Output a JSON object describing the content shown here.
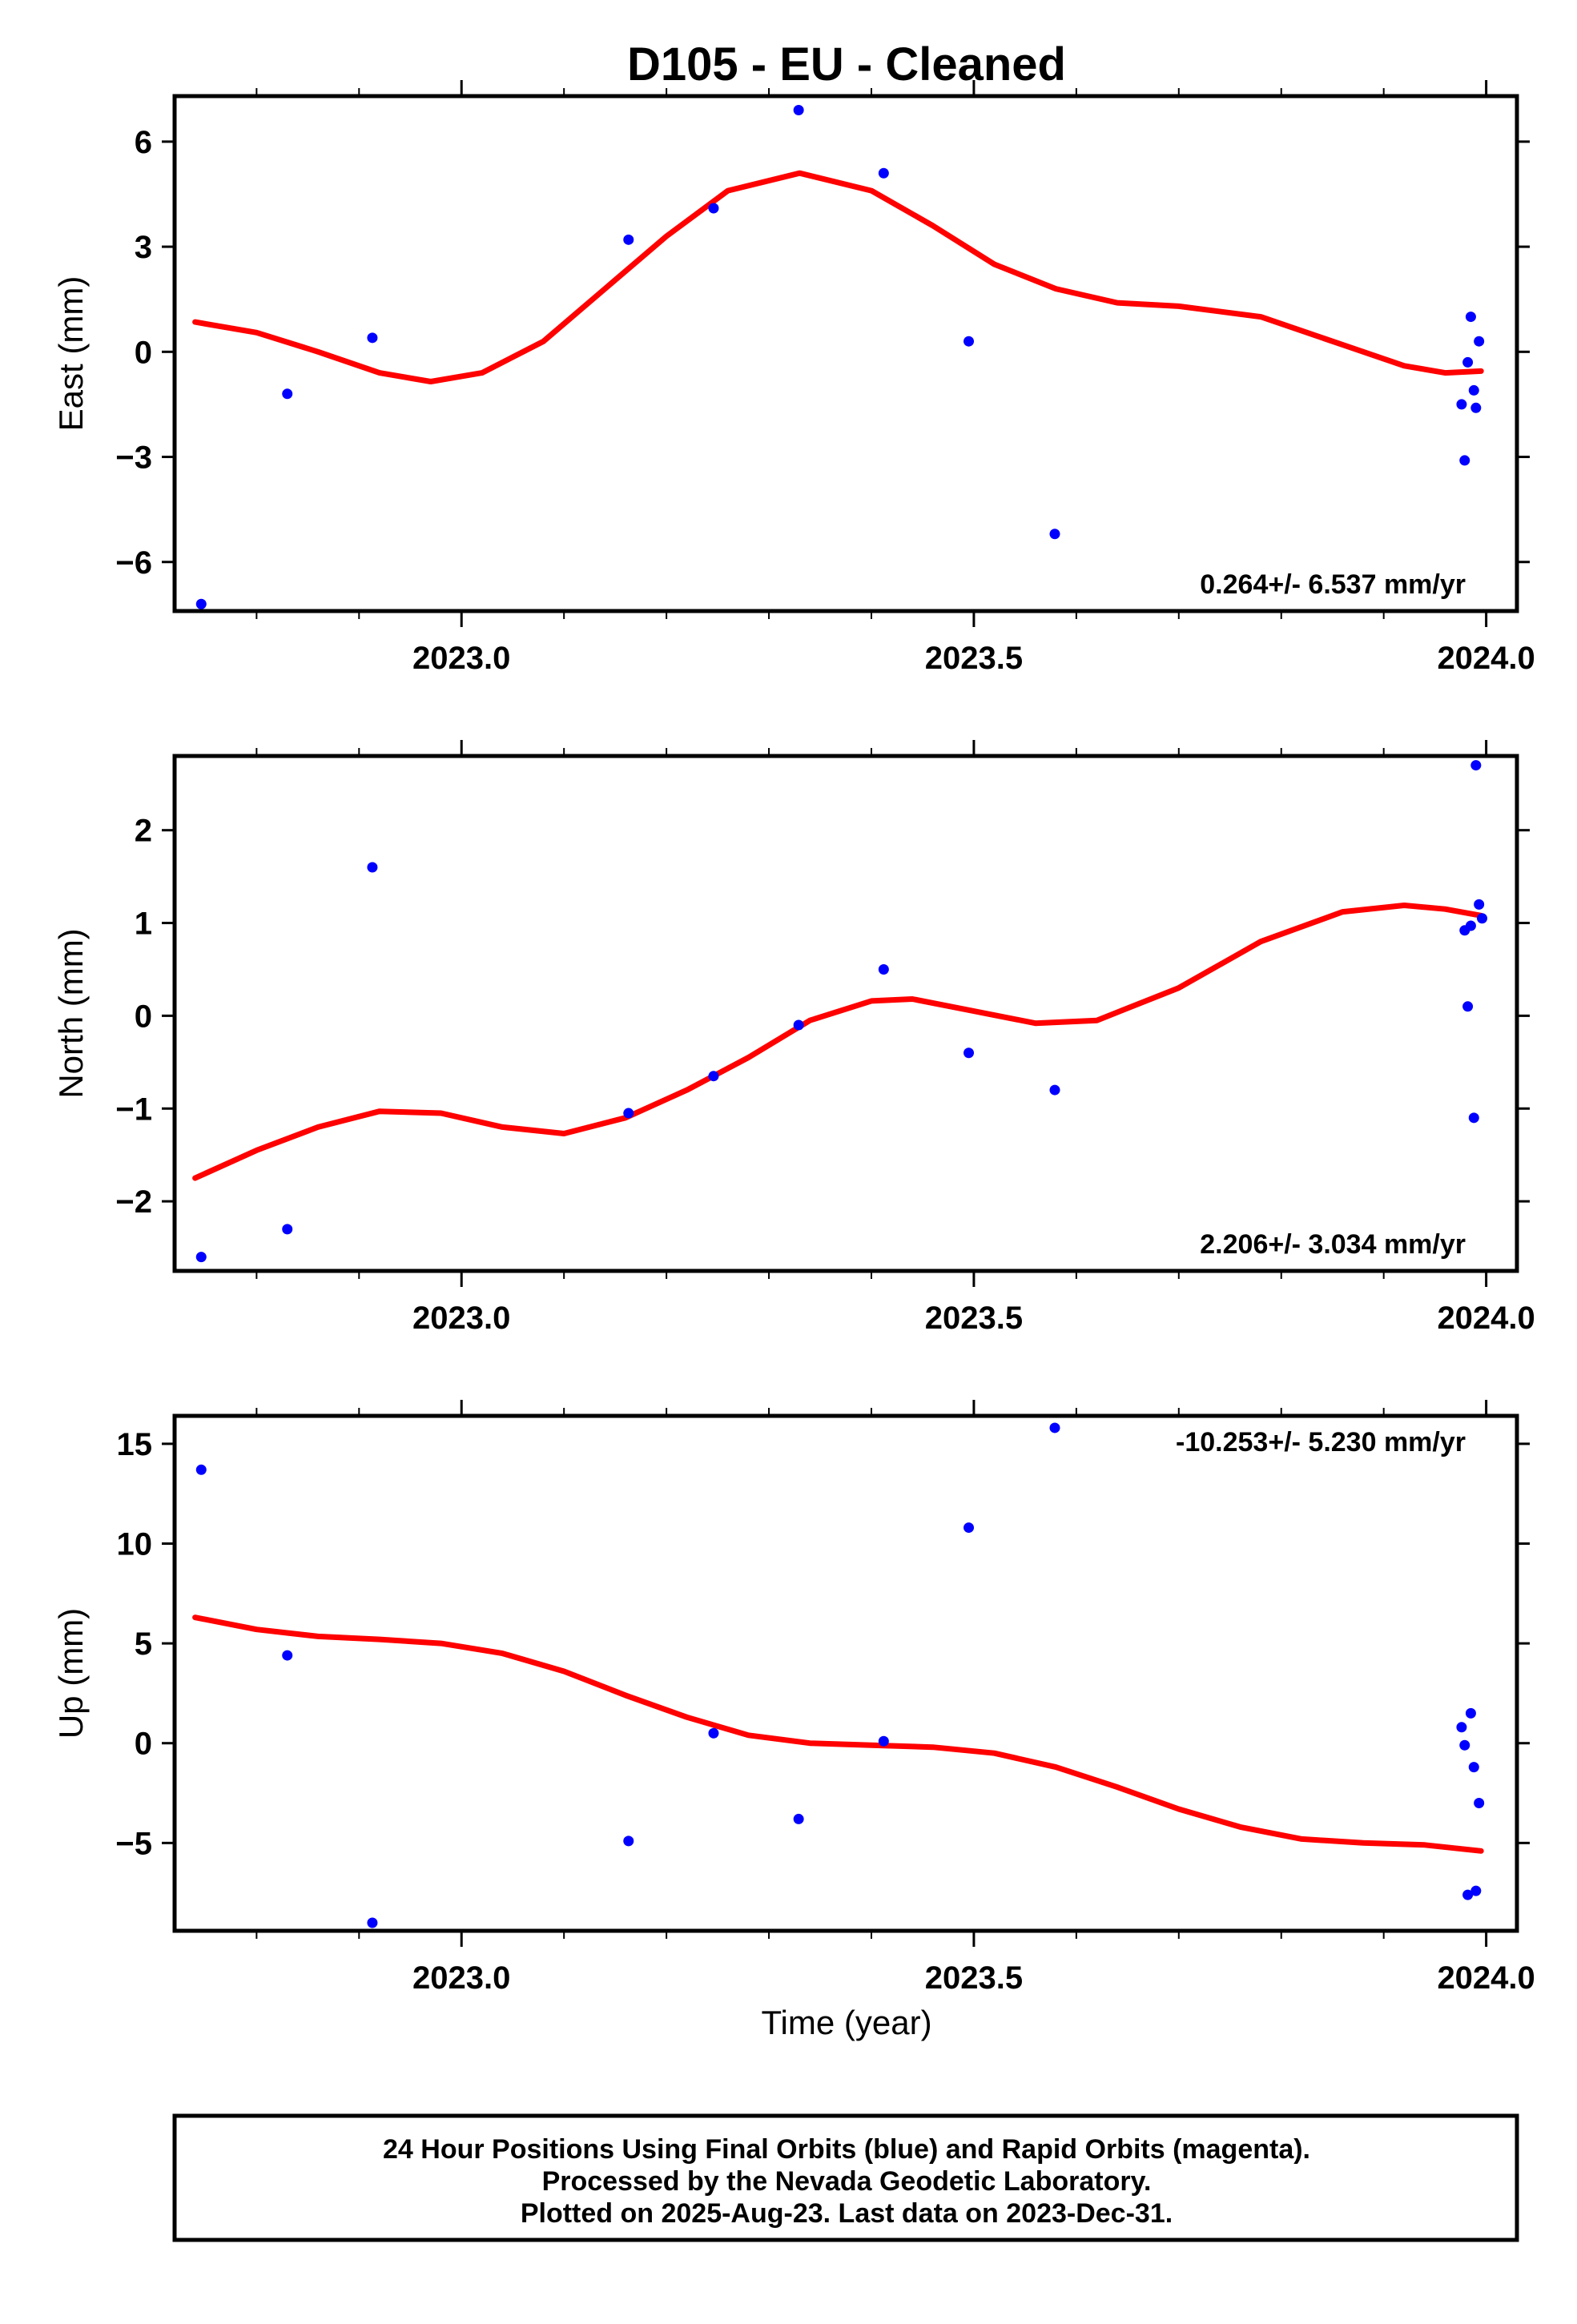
{
  "chart_data": {
    "title": "D105  - EU - Cleaned",
    "type": "scatter",
    "x_tick_labels": [
      "2023.0",
      "2023.5",
      "2024.0"
    ],
    "xlim": [
      2022.72,
      2024.03
    ],
    "xlabel": "Time (year)",
    "marker_color": "#0000ff",
    "fit_color": "#ff0000",
    "panels": [
      {
        "name": "east",
        "ylabel": "East (mm)",
        "ylim": [
          -7.4,
          7.3
        ],
        "y_ticks": [
          6,
          3,
          0,
          -3,
          -6
        ],
        "y_tick_labels": [
          "6",
          "3",
          "0",
          "−3",
          "−6"
        ],
        "rate": "0.264+/- 6.537 mm/yr",
        "points": [
          [
            2022.746,
            -7.2
          ],
          [
            2022.83,
            -1.2
          ],
          [
            2022.913,
            0.4
          ],
          [
            2023.163,
            3.2
          ],
          [
            2023.246,
            4.1
          ],
          [
            2023.329,
            6.9
          ],
          [
            2023.412,
            5.1
          ],
          [
            2023.495,
            0.3
          ],
          [
            2023.579,
            -5.2
          ],
          [
            2023.976,
            -1.5
          ],
          [
            2023.979,
            -3.1
          ],
          [
            2023.982,
            -0.3
          ],
          [
            2023.985,
            1.0
          ],
          [
            2023.988,
            -1.1
          ],
          [
            2023.99,
            -1.6
          ],
          [
            2023.993,
            0.3
          ]
        ],
        "fit": [
          [
            2022.74,
            0.85
          ],
          [
            2022.8,
            0.55
          ],
          [
            2022.86,
            0.0
          ],
          [
            2022.92,
            -0.6
          ],
          [
            2022.97,
            -0.85
          ],
          [
            2023.02,
            -0.6
          ],
          [
            2023.08,
            0.3
          ],
          [
            2023.14,
            1.8
          ],
          [
            2023.2,
            3.3
          ],
          [
            2023.26,
            4.6
          ],
          [
            2023.33,
            5.1
          ],
          [
            2023.4,
            4.6
          ],
          [
            2023.46,
            3.6
          ],
          [
            2023.52,
            2.5
          ],
          [
            2023.58,
            1.8
          ],
          [
            2023.64,
            1.4
          ],
          [
            2023.7,
            1.3
          ],
          [
            2023.78,
            1.0
          ],
          [
            2023.86,
            0.2
          ],
          [
            2023.92,
            -0.4
          ],
          [
            2023.96,
            -0.6
          ],
          [
            2023.995,
            -0.55
          ]
        ]
      },
      {
        "name": "north",
        "ylabel": "North (mm)",
        "ylim": [
          -2.75,
          2.8
        ],
        "y_ticks": [
          2,
          1,
          0,
          -1,
          -2
        ],
        "y_tick_labels": [
          "2",
          "1",
          "0",
          "−1",
          "−2"
        ],
        "rate": "2.206+/- 3.034 mm/yr",
        "points": [
          [
            2022.746,
            -2.6
          ],
          [
            2022.83,
            -2.3
          ],
          [
            2022.913,
            1.6
          ],
          [
            2023.163,
            -1.05
          ],
          [
            2023.246,
            -0.65
          ],
          [
            2023.329,
            -0.1
          ],
          [
            2023.412,
            0.5
          ],
          [
            2023.495,
            -0.4
          ],
          [
            2023.579,
            -0.8
          ],
          [
            2023.979,
            0.92
          ],
          [
            2023.982,
            0.1
          ],
          [
            2023.985,
            0.97
          ],
          [
            2023.988,
            -1.1
          ],
          [
            2023.99,
            2.7
          ],
          [
            2023.993,
            1.2
          ],
          [
            2023.996,
            1.05
          ]
        ],
        "fit": [
          [
            2022.74,
            -1.75
          ],
          [
            2022.8,
            -1.45
          ],
          [
            2022.86,
            -1.2
          ],
          [
            2022.92,
            -1.03
          ],
          [
            2022.98,
            -1.05
          ],
          [
            2023.04,
            -1.2
          ],
          [
            2023.1,
            -1.27
          ],
          [
            2023.16,
            -1.1
          ],
          [
            2023.22,
            -0.8
          ],
          [
            2023.28,
            -0.45
          ],
          [
            2023.34,
            -0.05
          ],
          [
            2023.4,
            0.16
          ],
          [
            2023.44,
            0.18
          ],
          [
            2023.5,
            0.05
          ],
          [
            2023.56,
            -0.08
          ],
          [
            2023.62,
            -0.05
          ],
          [
            2023.7,
            0.3
          ],
          [
            2023.78,
            0.8
          ],
          [
            2023.86,
            1.12
          ],
          [
            2023.92,
            1.19
          ],
          [
            2023.96,
            1.15
          ],
          [
            2023.995,
            1.08
          ]
        ]
      },
      {
        "name": "up",
        "ylabel": "Up (mm)",
        "ylim": [
          -9.4,
          16.4
        ],
        "y_ticks": [
          15,
          10,
          5,
          0,
          -5
        ],
        "y_tick_labels": [
          "15",
          "10",
          "5",
          "0",
          "−5"
        ],
        "rate": "-10.253+/- 5.230 mm/yr",
        "points": [
          [
            2022.746,
            13.7
          ],
          [
            2022.83,
            4.4
          ],
          [
            2022.913,
            -9.0
          ],
          [
            2023.163,
            -4.9
          ],
          [
            2023.246,
            0.5
          ],
          [
            2023.329,
            -3.8
          ],
          [
            2023.412,
            0.1
          ],
          [
            2023.495,
            10.8
          ],
          [
            2023.579,
            15.8
          ],
          [
            2023.976,
            0.8
          ],
          [
            2023.979,
            -0.1
          ],
          [
            2023.982,
            -7.6
          ],
          [
            2023.985,
            1.5
          ],
          [
            2023.988,
            -1.2
          ],
          [
            2023.99,
            -7.4
          ],
          [
            2023.993,
            -3.0
          ]
        ],
        "fit": [
          [
            2022.74,
            6.3
          ],
          [
            2022.8,
            5.7
          ],
          [
            2022.86,
            5.35
          ],
          [
            2022.92,
            5.2
          ],
          [
            2022.98,
            5.0
          ],
          [
            2023.04,
            4.5
          ],
          [
            2023.1,
            3.6
          ],
          [
            2023.16,
            2.4
          ],
          [
            2023.22,
            1.3
          ],
          [
            2023.28,
            0.4
          ],
          [
            2023.34,
            0.0
          ],
          [
            2023.4,
            -0.1
          ],
          [
            2023.46,
            -0.2
          ],
          [
            2023.52,
            -0.5
          ],
          [
            2023.58,
            -1.2
          ],
          [
            2023.64,
            -2.2
          ],
          [
            2023.7,
            -3.3
          ],
          [
            2023.76,
            -4.2
          ],
          [
            2023.82,
            -4.8
          ],
          [
            2023.88,
            -5.0
          ],
          [
            2023.94,
            -5.1
          ],
          [
            2023.995,
            -5.4
          ]
        ]
      }
    ]
  },
  "footer": {
    "line1": "24 Hour Positions Using Final Orbits (blue) and Rapid Orbits (magenta).",
    "line2": "Processed by the Nevada Geodetic Laboratory.",
    "line3": "Plotted on 2025-Aug-23. Last data on 2023-Dec-31."
  }
}
